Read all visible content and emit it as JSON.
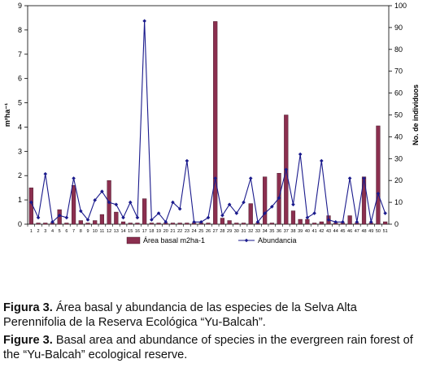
{
  "chart_data": {
    "type": "bar",
    "categories": [
      "1",
      "2",
      "3",
      "4",
      "5",
      "6",
      "7",
      "8",
      "9",
      "10",
      "11",
      "12",
      "13",
      "14",
      "15",
      "16",
      "17",
      "18",
      "19",
      "20",
      "21",
      "22",
      "23",
      "24",
      "25",
      "26",
      "27",
      "28",
      "29",
      "30",
      "31",
      "32",
      "33",
      "34",
      "35",
      "36",
      "37",
      "38",
      "39",
      "40",
      "41",
      "42",
      "43",
      "44",
      "45",
      "46",
      "47",
      "48",
      "49",
      "50",
      "51"
    ],
    "left_axis": {
      "label": "m²ha⁻¹",
      "ylim": [
        0,
        9
      ],
      "ticks": [
        0,
        1,
        2,
        3,
        4,
        5,
        6,
        7,
        8,
        9
      ]
    },
    "right_axis": {
      "label": "No. de individuos",
      "ylim": [
        0,
        100
      ],
      "ticks": [
        0,
        10,
        20,
        30,
        40,
        50,
        60,
        70,
        80,
        90,
        100
      ]
    },
    "series": [
      {
        "name": "Área basal m2ha-1",
        "kind": "bar",
        "axis": "left",
        "color": "#8b2f4f",
        "values": [
          1.5,
          0.05,
          0.05,
          0.05,
          0.6,
          0.05,
          1.6,
          0.15,
          0.05,
          0.15,
          0.4,
          1.8,
          0.5,
          0.1,
          0.05,
          0.05,
          1.05,
          0.05,
          0.05,
          0.05,
          0.05,
          0.05,
          0.05,
          0.05,
          0.05,
          0.05,
          8.35,
          0.25,
          0.15,
          0.05,
          0.05,
          0.85,
          0.05,
          1.95,
          0.05,
          2.1,
          4.5,
          0.55,
          0.2,
          0.2,
          0.05,
          0.1,
          0.35,
          0.05,
          0.05,
          0.35,
          0.05,
          1.95,
          0.05,
          4.05,
          0.1
        ]
      },
      {
        "name": "Abundancia",
        "kind": "line",
        "axis": "right",
        "color": "#1a1a8c",
        "values": [
          10,
          3,
          23,
          1,
          4,
          3,
          21,
          6,
          2,
          11,
          15,
          10,
          9,
          3,
          10,
          3,
          93,
          2,
          5,
          1,
          10,
          7,
          29,
          1,
          1,
          3,
          21,
          4,
          9,
          5,
          10,
          21,
          1,
          5,
          8,
          12,
          25,
          9,
          32,
          3,
          5,
          29,
          2,
          1,
          1,
          21,
          1,
          21,
          1,
          14,
          5
        ]
      }
    ],
    "legend_position": "bottom",
    "grid": false
  },
  "caption_es": {
    "label": "Figura 3.",
    "text": " Área basal y abundancia de las especies de la Selva Alta Perennifolia de la Reserva Ecológica “Yu-Balcah”."
  },
  "caption_en": {
    "label": "Figure 3.",
    "text": " Basal area and abundance of species in the evergreen rain forest of the “Yu-Balcah” ecological reserve."
  }
}
